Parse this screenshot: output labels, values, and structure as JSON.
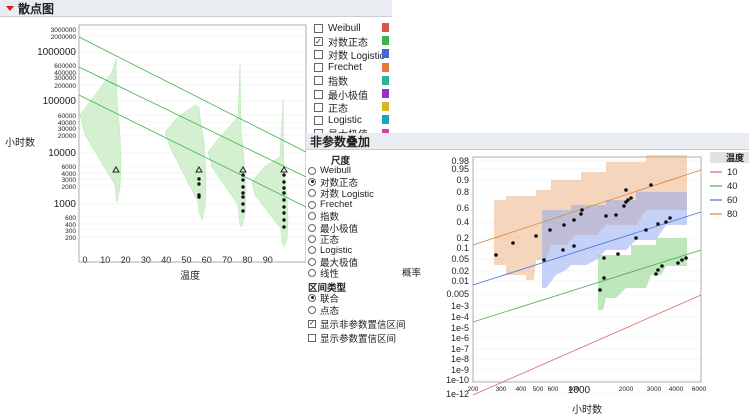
{
  "scatter": {
    "title": "散点图",
    "ylabel": "小时数",
    "xlabel": "温度",
    "y_ticks": [
      "3000000",
      "2000000",
      "1000000",
      "600000",
      "400000",
      "300000",
      "200000",
      "100000",
      "60000",
      "40000",
      "30000",
      "20000",
      "10000",
      "6000",
      "4000",
      "3000",
      "2000",
      "1000",
      "600",
      "400",
      "300",
      "200"
    ],
    "x_ticks": [
      "0",
      "10",
      "20",
      "30",
      "40",
      "50",
      "60",
      "70",
      "80",
      "90"
    ]
  },
  "legend_items": [
    {
      "label": "Weibull",
      "checked": false,
      "color": "#d9534f"
    },
    {
      "label": "对数正态",
      "checked": true,
      "color": "#3cb44b"
    },
    {
      "label": "对数 Logistic",
      "checked": false,
      "color": "#4363d8"
    },
    {
      "label": "Frechet",
      "checked": false,
      "color": "#e07b39"
    },
    {
      "label": "指数",
      "checked": false,
      "color": "#2ab39a"
    },
    {
      "label": "最小极值",
      "checked": false,
      "color": "#9b30d0"
    },
    {
      "label": "正态",
      "checked": false,
      "color": "#d8b52e"
    },
    {
      "label": "Logistic",
      "checked": false,
      "color": "#1aa6b7"
    },
    {
      "label": "最大极值",
      "checked": false,
      "color": "#d63fa5"
    }
  ],
  "overlay": {
    "title": "非参数叠加",
    "scale_label": "尺度",
    "scale_options": [
      {
        "label": "Weibull",
        "selected": false
      },
      {
        "label": "对数正态",
        "selected": true
      },
      {
        "label": "对数 Logistic",
        "selected": false
      },
      {
        "label": "Frechet",
        "selected": false
      },
      {
        "label": "指数",
        "selected": false
      },
      {
        "label": "最小极值",
        "selected": false
      },
      {
        "label": "正态",
        "selected": false
      },
      {
        "label": "Logistic",
        "selected": false
      },
      {
        "label": "最大极值",
        "selected": false
      },
      {
        "label": "线性",
        "selected": false
      }
    ],
    "interval_label": "区间类型",
    "interval_options": [
      {
        "label": "联合",
        "selected": true
      },
      {
        "label": "点态",
        "selected": false
      }
    ],
    "checkboxes": [
      {
        "label": "显示非参数置信区间",
        "checked": true
      },
      {
        "label": "显示参数置信区间",
        "checked": false
      }
    ],
    "ylabel": "概率",
    "xlabel": "小时数",
    "y_ticks": [
      "0.98",
      "0.95",
      "0.9",
      "0.8",
      "0.6",
      "0.4",
      "0.2",
      "0.1",
      "0.05",
      "0.02",
      "0.01",
      "0.005",
      "1e-3",
      "1e-4",
      "1e-5",
      "1e-6",
      "1e-7",
      "1e-8",
      "1e-9",
      "1e-10",
      "1e-12"
    ],
    "x_ticks": [
      "200",
      "300",
      "400",
      "500",
      "600",
      "800",
      "1000",
      "2000",
      "3000",
      "4000",
      "6000"
    ],
    "legend_title": "温度",
    "legend": [
      {
        "label": "10",
        "color": "#e06666"
      },
      {
        "label": "40",
        "color": "#4cae4c"
      },
      {
        "label": "60",
        "color": "#4a6fe0"
      },
      {
        "label": "80",
        "color": "#d9823b"
      }
    ]
  }
}
